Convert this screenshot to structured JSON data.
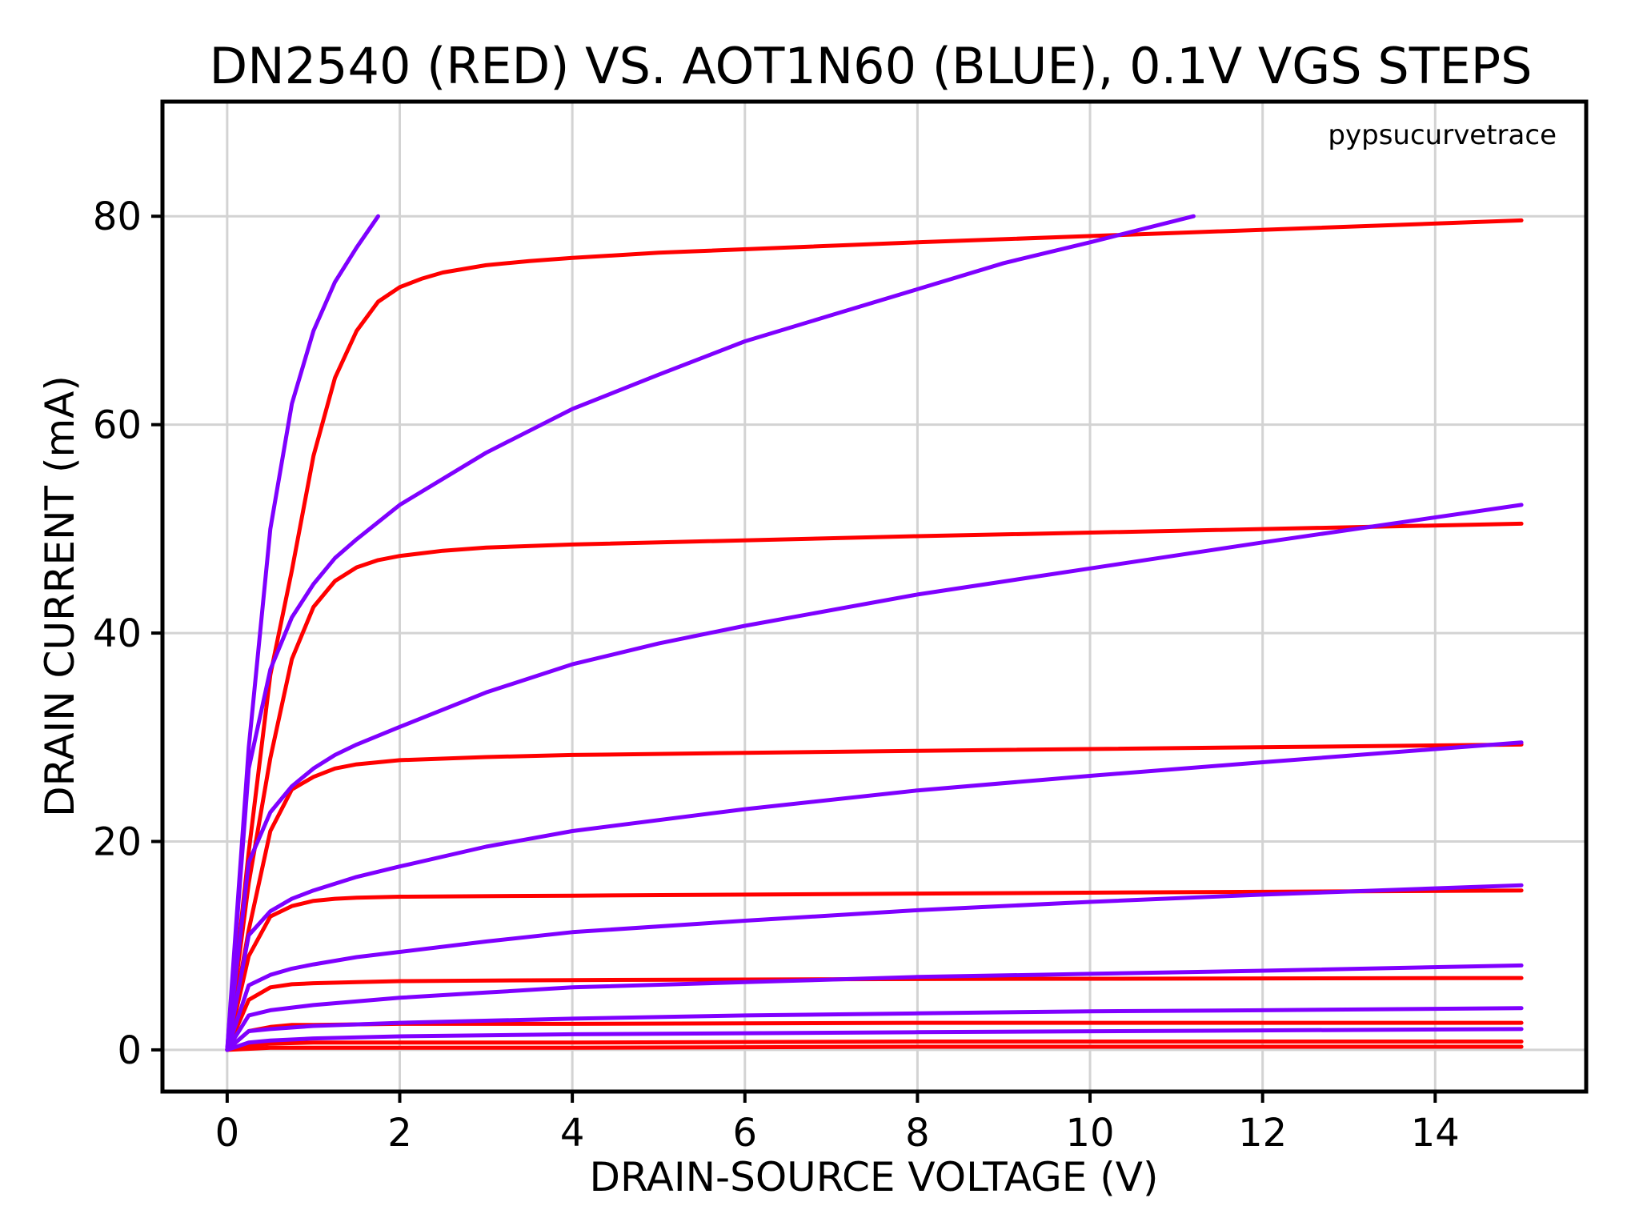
{
  "chart_data": {
    "type": "line",
    "title": "DN2540 (RED) VS. AOT1N60 (BLUE), 0.1V VGS STEPS",
    "xlabel": "DRAIN-SOURCE VOLTAGE (V)",
    "ylabel": "DRAIN CURRENT (mA)",
    "annotation": "pypsucurvetrace",
    "xlim": [
      -0.75,
      15.75
    ],
    "ylim": [
      -4,
      91
    ],
    "xticks": [
      0,
      2,
      4,
      6,
      8,
      10,
      12,
      14
    ],
    "yticks": [
      0,
      20,
      40,
      60,
      80
    ],
    "grid": true,
    "colors": {
      "red": "#ff0000",
      "blue": "#7f00ff"
    },
    "series": [
      {
        "color": "#ff0000",
        "x": [
          0,
          0.25,
          0.5,
          1,
          2,
          4,
          8,
          15
        ],
        "y": [
          0,
          0.1,
          0.2,
          0.2,
          0.2,
          0.2,
          0.3,
          0.3
        ]
      },
      {
        "color": "#ff0000",
        "x": [
          0,
          0.25,
          0.5,
          1,
          2,
          4,
          8,
          15
        ],
        "y": [
          0,
          0.4,
          0.6,
          0.7,
          0.7,
          0.7,
          0.8,
          0.8
        ]
      },
      {
        "color": "#ff0000",
        "x": [
          0,
          0.25,
          0.5,
          0.75,
          1,
          2,
          4,
          8,
          15
        ],
        "y": [
          0,
          1.8,
          2.2,
          2.4,
          2.4,
          2.5,
          2.5,
          2.6,
          2.6
        ]
      },
      {
        "color": "#ff0000",
        "x": [
          0,
          0.25,
          0.5,
          0.75,
          1,
          1.5,
          2,
          4,
          8,
          15
        ],
        "y": [
          0,
          4.8,
          6.0,
          6.3,
          6.4,
          6.5,
          6.6,
          6.7,
          6.8,
          6.9
        ]
      },
      {
        "color": "#ff0000",
        "x": [
          0,
          0.25,
          0.5,
          0.75,
          1,
          1.25,
          1.5,
          2,
          4,
          8,
          15
        ],
        "y": [
          0,
          9.0,
          12.8,
          13.8,
          14.3,
          14.5,
          14.6,
          14.7,
          14.8,
          15.0,
          15.3
        ]
      },
      {
        "color": "#ff0000",
        "x": [
          0,
          0.25,
          0.5,
          0.75,
          1,
          1.25,
          1.5,
          2,
          3,
          4,
          8,
          15
        ],
        "y": [
          0,
          11.5,
          21.0,
          25.0,
          26.2,
          27.0,
          27.4,
          27.8,
          28.1,
          28.3,
          28.7,
          29.3
        ]
      },
      {
        "color": "#ff0000",
        "x": [
          0,
          0.25,
          0.5,
          0.75,
          1,
          1.25,
          1.5,
          1.75,
          2,
          2.5,
          3,
          4,
          8,
          15
        ],
        "y": [
          0,
          16,
          28,
          37.5,
          42.5,
          45.0,
          46.3,
          47.0,
          47.4,
          47.9,
          48.2,
          48.5,
          49.3,
          50.5
        ]
      },
      {
        "color": "#ff0000",
        "x": [
          0,
          0.25,
          0.5,
          0.75,
          1,
          1.25,
          1.5,
          1.75,
          2,
          2.25,
          2.5,
          3,
          3.5,
          4,
          5,
          8,
          15
        ],
        "y": [
          0,
          19,
          36,
          46,
          57,
          64.5,
          69,
          71.8,
          73.2,
          74.0,
          74.6,
          75.3,
          75.7,
          76.0,
          76.5,
          77.5,
          79.6
        ]
      },
      {
        "color": "#7f00ff",
        "x": [
          0,
          0.25,
          0.5,
          1,
          2,
          4,
          8,
          15
        ],
        "y": [
          0,
          0.7,
          0.9,
          1.1,
          1.3,
          1.5,
          1.7,
          2.0
        ]
      },
      {
        "color": "#7f00ff",
        "x": [
          0,
          0.25,
          0.5,
          1,
          2,
          4,
          6,
          8,
          10,
          12,
          15
        ],
        "y": [
          0,
          1.8,
          2.0,
          2.3,
          2.6,
          3.0,
          3.3,
          3.5,
          3.7,
          3.8,
          4.0
        ]
      },
      {
        "color": "#7f00ff",
        "x": [
          0,
          0.25,
          0.5,
          1,
          2,
          3,
          4,
          6,
          8,
          10,
          12,
          15
        ],
        "y": [
          0,
          3.3,
          3.8,
          4.3,
          5.0,
          5.5,
          6.0,
          6.5,
          7.0,
          7.3,
          7.6,
          8.1
        ]
      },
      {
        "color": "#7f00ff",
        "x": [
          0,
          0.25,
          0.5,
          0.75,
          1,
          1.5,
          2,
          3,
          4,
          6,
          8,
          10,
          12,
          15
        ],
        "y": [
          0,
          6.2,
          7.2,
          7.8,
          8.2,
          8.9,
          9.4,
          10.4,
          11.3,
          12.4,
          13.4,
          14.2,
          14.9,
          15.8
        ]
      },
      {
        "color": "#7f00ff",
        "x": [
          0,
          0.25,
          0.5,
          0.75,
          1,
          1.5,
          2,
          3,
          4,
          6,
          8,
          10,
          12,
          15
        ],
        "y": [
          0,
          11.0,
          13.3,
          14.5,
          15.3,
          16.6,
          17.6,
          19.5,
          21.0,
          23.1,
          24.9,
          26.3,
          27.6,
          29.5
        ]
      },
      {
        "color": "#7f00ff",
        "x": [
          0,
          0.25,
          0.5,
          0.75,
          1,
          1.25,
          1.5,
          2,
          3,
          4,
          5,
          6,
          8,
          10,
          12,
          15
        ],
        "y": [
          0,
          18.0,
          22.8,
          25.3,
          27.0,
          28.3,
          29.3,
          31.0,
          34.3,
          37.0,
          39.0,
          40.7,
          43.7,
          46.2,
          48.7,
          52.3
        ]
      },
      {
        "color": "#7f00ff",
        "x": [
          0,
          0.25,
          0.5,
          0.75,
          1,
          1.25,
          1.5,
          2,
          3,
          4,
          5,
          6,
          7,
          8,
          9,
          10,
          11.2
        ],
        "y": [
          0,
          27,
          36.5,
          41.5,
          44.7,
          47.2,
          49.0,
          52.3,
          57.3,
          61.5,
          64.8,
          68.0,
          70.5,
          73.0,
          75.5,
          77.5,
          80.0
        ]
      },
      {
        "color": "#7f00ff",
        "x": [
          0,
          0.25,
          0.5,
          0.75,
          1,
          1.25,
          1.5,
          1.75
        ],
        "y": [
          0,
          29,
          50,
          62,
          69,
          73.7,
          77.0,
          80.0
        ]
      }
    ]
  }
}
